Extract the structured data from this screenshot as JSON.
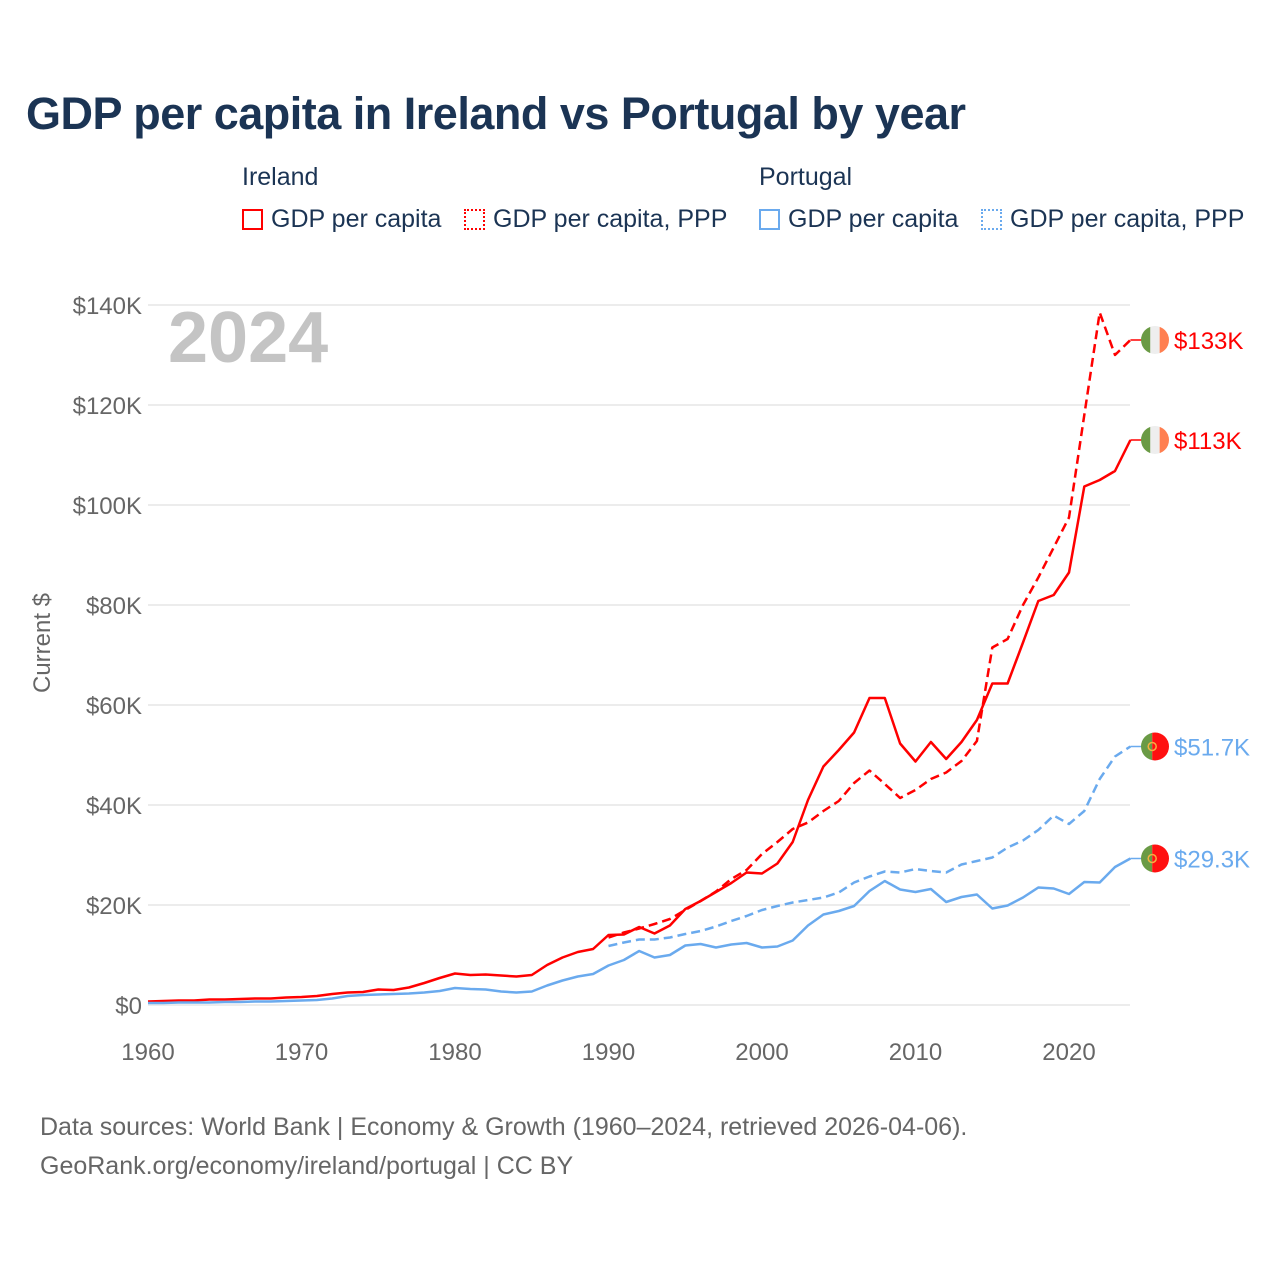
{
  "title": "GDP per capita in Ireland vs Portugal by year",
  "legend": {
    "groups": [
      {
        "name": "Ireland",
        "items": [
          "GDP per capita",
          "GDP per capita, PPP"
        ],
        "color": "#ff0000"
      },
      {
        "name": "Portugal",
        "items": [
          "GDP per capita",
          "GDP per capita, PPP"
        ],
        "color": "#6aaaee"
      }
    ]
  },
  "year_label": "2024",
  "source_line1": "Data sources: World Bank | Economy & Growth (1960–2024, retrieved 2026-04-06).",
  "source_line2": "GeoRank.org/economy/ireland/portugal | CC BY",
  "chart_data": {
    "type": "line",
    "title": "GDP per capita in Ireland vs Portugal by year",
    "xlabel": "",
    "ylabel": "Current $",
    "xlim": [
      1960,
      2024
    ],
    "ylim": [
      0,
      140
    ],
    "unit": "thousand USD",
    "grid": true,
    "legend_position": "top",
    "x_ticks": [
      "1960",
      "1970",
      "1980",
      "1990",
      "2000",
      "2010",
      "2020"
    ],
    "y_ticks": [
      "$0",
      "$20K",
      "$40K",
      "$60K",
      "$80K",
      "$100K",
      "$120K",
      "$140K"
    ],
    "series": [
      {
        "name": "Ireland GDP per capita",
        "color": "#ff0000",
        "dashed": false,
        "start": 1960,
        "end_label": "$113K",
        "flag": "ireland",
        "values": [
          0.7,
          0.8,
          0.9,
          0.9,
          1.1,
          1.1,
          1.2,
          1.3,
          1.3,
          1.5,
          1.6,
          1.8,
          2.2,
          2.5,
          2.6,
          3.1,
          3.0,
          3.5,
          4.4,
          5.4,
          6.3,
          6.0,
          6.1,
          5.9,
          5.7,
          6.0,
          8.0,
          9.5,
          10.6,
          11.2,
          14.0,
          14.1,
          15.6,
          14.3,
          15.9,
          19.2,
          20.8,
          22.6,
          24.4,
          26.5,
          26.3,
          28.3,
          32.6,
          41.0,
          47.7,
          51.0,
          54.5,
          61.4,
          61.4,
          52.3,
          48.7,
          52.6,
          49.2,
          52.6,
          57.0,
          64.3,
          64.3,
          72.5,
          80.8,
          82.0,
          86.5,
          103.7,
          105.0,
          106.8,
          113.0
        ]
      },
      {
        "name": "Ireland GDP per capita, PPP",
        "color": "#ff0000",
        "dashed": true,
        "start": 1990,
        "end_label": "$133K",
        "flag": "ireland",
        "values": [
          13.5,
          14.5,
          15.3,
          16.2,
          17.2,
          19.0,
          20.8,
          22.7,
          25.2,
          27.0,
          30.2,
          32.6,
          35.2,
          36.5,
          38.8,
          40.8,
          44.4,
          46.9,
          44.2,
          41.4,
          43.0,
          45.2,
          46.5,
          48.8,
          52.8,
          71.5,
          73.2,
          80.0,
          85.5,
          91.5,
          97.5,
          118.0,
          138.5,
          130.0,
          133.0
        ]
      },
      {
        "name": "Portugal GDP per capita",
        "color": "#6aaaee",
        "dashed": false,
        "start": 1960,
        "end_label": "$29.3K",
        "flag": "portugal",
        "values": [
          0.4,
          0.4,
          0.5,
          0.5,
          0.5,
          0.6,
          0.6,
          0.7,
          0.7,
          0.8,
          0.9,
          1.0,
          1.3,
          1.8,
          2.0,
          2.1,
          2.2,
          2.3,
          2.5,
          2.8,
          3.4,
          3.2,
          3.1,
          2.7,
          2.5,
          2.7,
          3.9,
          4.9,
          5.7,
          6.2,
          7.9,
          9.0,
          10.8,
          9.5,
          10.0,
          11.9,
          12.2,
          11.5,
          12.1,
          12.4,
          11.5,
          11.7,
          12.9,
          15.9,
          18.1,
          18.8,
          19.8,
          22.8,
          24.8,
          23.1,
          22.6,
          23.2,
          20.6,
          21.6,
          22.1,
          19.3,
          19.9,
          21.5,
          23.5,
          23.3,
          22.2,
          24.6,
          24.5,
          27.6,
          29.3
        ]
      },
      {
        "name": "Portugal GDP per capita, PPP",
        "color": "#6aaaee",
        "dashed": true,
        "start": 1990,
        "end_label": "$51.7K",
        "flag": "portugal",
        "values": [
          11.8,
          12.5,
          13.1,
          13.1,
          13.5,
          14.2,
          14.8,
          15.7,
          16.8,
          17.8,
          19.0,
          19.8,
          20.5,
          21.0,
          21.5,
          22.5,
          24.5,
          25.7,
          26.7,
          26.5,
          27.2,
          26.8,
          26.5,
          28.1,
          28.8,
          29.5,
          31.5,
          32.9,
          35.0,
          37.9,
          36.2,
          38.8,
          45.2,
          49.7,
          51.7
        ]
      }
    ]
  }
}
